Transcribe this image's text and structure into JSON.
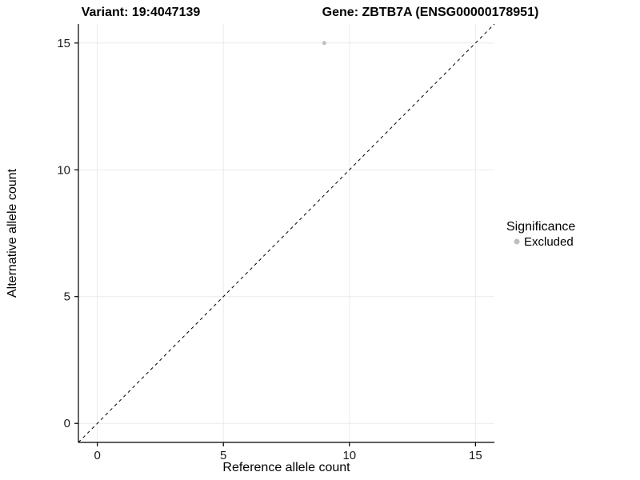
{
  "chart_data": {
    "type": "scatter",
    "title_left": "Variant: 19:4047139",
    "title_right": "Gene: ZBTB7A (ENSG00000178951)",
    "xlabel": "Reference allele count",
    "ylabel": "Alternative allele count",
    "xlim": [
      -0.75,
      15.75
    ],
    "ylim": [
      -0.75,
      15.75
    ],
    "xticks": [
      0,
      5,
      10,
      15
    ],
    "yticks": [
      0,
      5,
      10,
      15
    ],
    "grid": true,
    "identity_line": {
      "style": "dashed",
      "from": [
        -0.75,
        -0.75
      ],
      "to": [
        15.75,
        15.75
      ],
      "color": "#000000"
    },
    "series": [
      {
        "name": "Excluded",
        "color": "#bebebe",
        "points": [
          {
            "x": 9,
            "y": 15
          }
        ]
      }
    ],
    "legend": {
      "title": "Significance",
      "position": "right",
      "items": [
        {
          "label": "Excluded",
          "color": "#bebebe"
        }
      ]
    },
    "colors": {
      "gridline": "#ebebeb",
      "axis": "#000000",
      "background": "#ffffff"
    }
  }
}
